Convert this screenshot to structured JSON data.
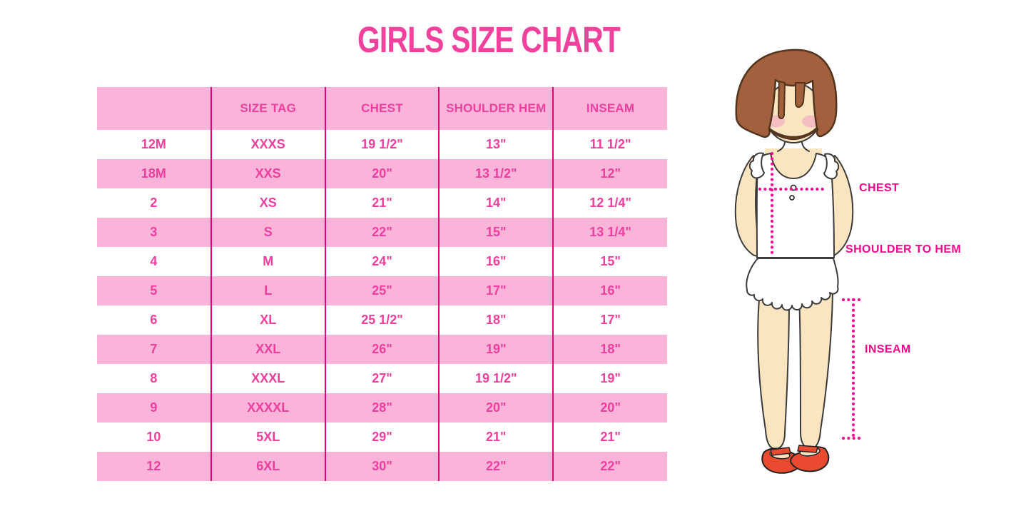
{
  "title": "GIRLS SIZE CHART",
  "chart_data": {
    "type": "table",
    "title": "GIRLS SIZE CHART",
    "columns": [
      "",
      "SIZE TAG",
      "CHEST",
      "SHOULDER HEM",
      "INSEAM"
    ],
    "rows": [
      [
        "12M",
        "XXXS",
        "19 1/2\"",
        "13\"",
        "11 1/2\""
      ],
      [
        "18M",
        "XXS",
        "20\"",
        "13 1/2\"",
        "12\""
      ],
      [
        "2",
        "XS",
        "21\"",
        "14\"",
        "12 1/4\""
      ],
      [
        "3",
        "S",
        "22\"",
        "15\"",
        "13 1/4\""
      ],
      [
        "4",
        "M",
        "24\"",
        "16\"",
        "15\""
      ],
      [
        "5",
        "L",
        "25\"",
        "17\"",
        "16\""
      ],
      [
        "6",
        "XL",
        "25 1/2\"",
        "18\"",
        "17\""
      ],
      [
        "7",
        "XXL",
        "26\"",
        "19\"",
        "18\""
      ],
      [
        "8",
        "XXXL",
        "27\"",
        "19 1/2\"",
        "19\""
      ],
      [
        "9",
        "XXXXL",
        "28\"",
        "20\"",
        "20\""
      ],
      [
        "10",
        "5XL",
        "29\"",
        "21\"",
        "21\""
      ],
      [
        "12",
        "6XL",
        "30\"",
        "22\"",
        "22\""
      ]
    ],
    "annotations": [
      "CHEST",
      "SHOULDER TO HEM",
      "INSEAM"
    ],
    "legend_position": "none",
    "grid": "magenta column dividers, alternating pink/white row stripes"
  },
  "figure": {
    "labels": {
      "chest": "CHEST",
      "shoulder_to_hem": "SHOULDER TO HEM",
      "inseam": "INSEAM"
    }
  },
  "colors": {
    "title-pink": "#F2419D",
    "stripe-pink": "#FAB4DA",
    "divider-magenta": "#DC0478",
    "table-text-pink": "#EE3E9E",
    "label-magenta": "#F1068E",
    "dotted-magenta": "#F2078E",
    "hair-brown": "#A2603C",
    "skin": "#FBE5C1",
    "blush": "#F2A5C3",
    "shoe-red": "#E94A30",
    "outline": "#3B3B3B",
    "background": "#FFFFFF"
  }
}
